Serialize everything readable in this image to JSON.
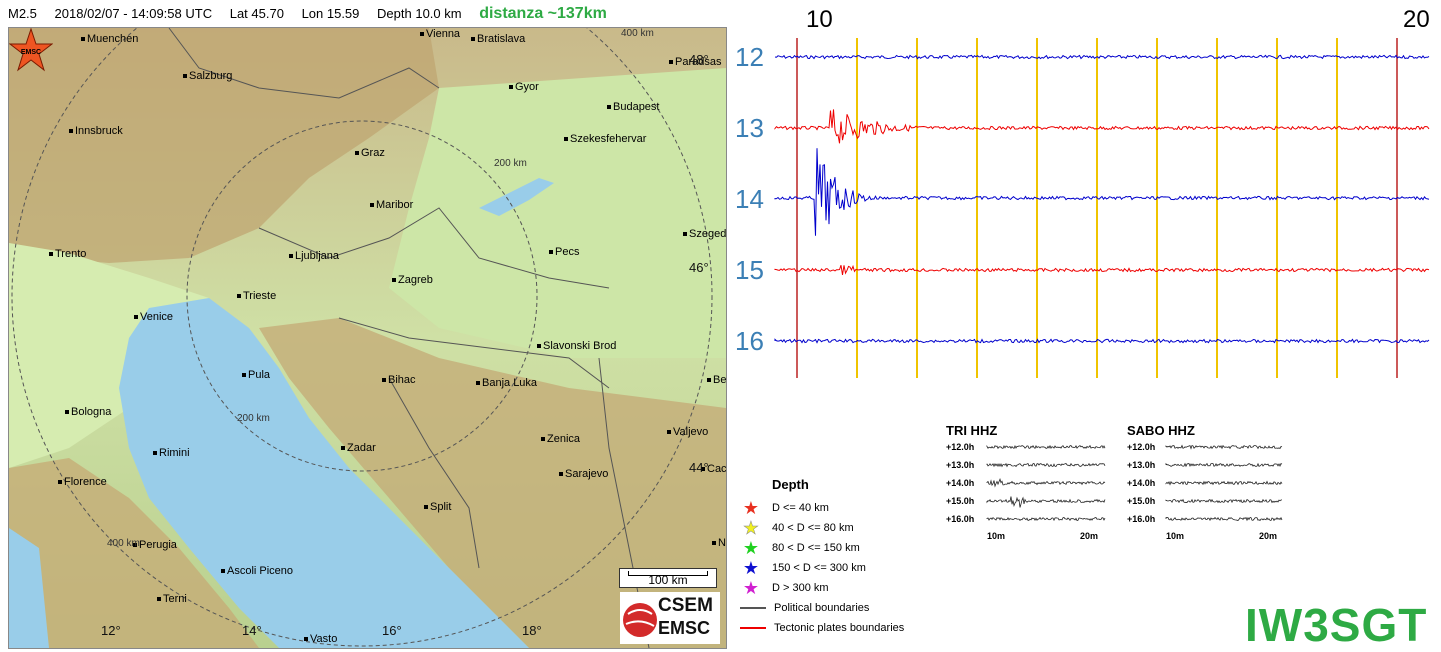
{
  "header": {
    "magnitude": "M2.5",
    "datetime": "2018/02/07 - 14:09:58 UTC",
    "lat": "Lat 45.70",
    "lon": "Lon 15.59",
    "depth": "Depth  10.0 km",
    "distance": "distanza ~137km"
  },
  "map": {
    "cities": [
      {
        "name": "Muenchen"
      },
      {
        "name": "Salzburg"
      },
      {
        "name": "Vienna"
      },
      {
        "name": "Bratislava"
      },
      {
        "name": "Paradsas"
      },
      {
        "name": "Gyor"
      },
      {
        "name": "Budapest"
      },
      {
        "name": "Innsbruck"
      },
      {
        "name": "Szekesfehervar"
      },
      {
        "name": "Graz"
      },
      {
        "name": "Maribor"
      },
      {
        "name": "Szeged"
      },
      {
        "name": "Trento"
      },
      {
        "name": "Ljubljana"
      },
      {
        "name": "Pecs"
      },
      {
        "name": "Zagreb"
      },
      {
        "name": "Trieste"
      },
      {
        "name": "Venice"
      },
      {
        "name": "Slavonski Brod"
      },
      {
        "name": "Pula"
      },
      {
        "name": "Bihac"
      },
      {
        "name": "Banja Luka"
      },
      {
        "name": "Bologna"
      },
      {
        "name": "Valjevo"
      },
      {
        "name": "Rimini"
      },
      {
        "name": "Zadar"
      },
      {
        "name": "Zenica"
      },
      {
        "name": "Sarajevo"
      },
      {
        "name": "Florence"
      },
      {
        "name": "Split"
      },
      {
        "name": "Perugia"
      },
      {
        "name": "Ascoli Piceno"
      },
      {
        "name": "Terni"
      },
      {
        "name": "Vasto"
      },
      {
        "name": "Be"
      },
      {
        "name": "Caca"
      },
      {
        "name": "No"
      }
    ],
    "lon_labels": [
      "12°",
      "14°",
      "16°",
      "18°"
    ],
    "lat_labels": [
      "46°",
      "44°",
      "48°"
    ],
    "ring_labels": [
      "200 km",
      "200 km",
      "400 km",
      "400 km"
    ],
    "epicenter_label": "EMSC",
    "scale_label": "100 km",
    "logo_top": "CSEM",
    "logo_bottom": "EMSC"
  },
  "seismogram": {
    "top_ticks": [
      "10",
      "20"
    ],
    "hours": [
      "12",
      "13",
      "14",
      "15",
      "16"
    ],
    "trace_colors": [
      "#0000cc",
      "#ee0000",
      "#0000cc",
      "#ee0000",
      "#0000cc"
    ]
  },
  "legend": {
    "title": "Depth",
    "items": [
      {
        "label": "D <= 40 km",
        "color": "#e83020"
      },
      {
        "label": "40 < D <= 80 km",
        "color": "#f0f020"
      },
      {
        "label": "80 < D <= 150 km",
        "color": "#20d020"
      },
      {
        "label": "150 < D <= 300 km",
        "color": "#1010d0"
      },
      {
        "label": "D > 300 km",
        "color": "#d020d0"
      }
    ],
    "lines": [
      {
        "label": "Political boundaries",
        "color": "#555555"
      },
      {
        "label": "Tectonic plates boundaries",
        "color": "#ee0000"
      }
    ]
  },
  "thumbnails": [
    {
      "title": "TRI HHZ",
      "rows": [
        "+12.0h",
        "+13.0h",
        "+14.0h",
        "+15.0h",
        "+16.0h"
      ],
      "x_labels": [
        "10m",
        "20m"
      ]
    },
    {
      "title": "SABO HHZ",
      "rows": [
        "+12.0h",
        "+13.0h",
        "+14.0h",
        "+15.0h",
        "+16.0h"
      ],
      "x_labels": [
        "10m",
        "20m"
      ]
    }
  ],
  "callsign": "IW3SGT"
}
